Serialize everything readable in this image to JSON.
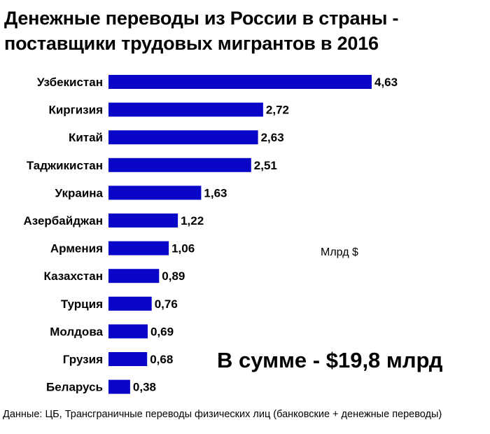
{
  "title_line1": "Денежные переводы из России в страны -",
  "title_line2": "поставщики трудовых мигрантов в 2016",
  "unit_label": "Млрд $",
  "total_label": "В сумме - $19,8 млрд",
  "source": "Данные: ЦБ, Трансграничные переводы физических лиц (банковские + денежные переводы)",
  "bar_color": "#0a06c8",
  "chart_data": {
    "type": "bar",
    "orientation": "horizontal",
    "categories": [
      "Узбекистан",
      "Киргизия",
      "Китай",
      "Таджикистан",
      "Украина",
      "Азербайджан",
      "Армения",
      "Казахстан",
      "Турция",
      "Молдова",
      "Грузия",
      "Беларусь"
    ],
    "values": [
      4.63,
      2.72,
      2.63,
      2.51,
      1.63,
      1.22,
      1.06,
      0.89,
      0.76,
      0.69,
      0.68,
      0.38
    ],
    "value_labels": [
      "4,63",
      "2,72",
      "2,63",
      "2,51",
      "1,63",
      "1,22",
      "1,06",
      "0,89",
      "0,76",
      "0,69",
      "0,68",
      "0,38"
    ],
    "title": "Денежные переводы из России в страны - поставщики трудовых мигрантов в 2016",
    "xlabel": "Млрд $",
    "ylabel": "",
    "xlim": [
      0,
      4.63
    ],
    "grid": false,
    "legend": "none"
  }
}
